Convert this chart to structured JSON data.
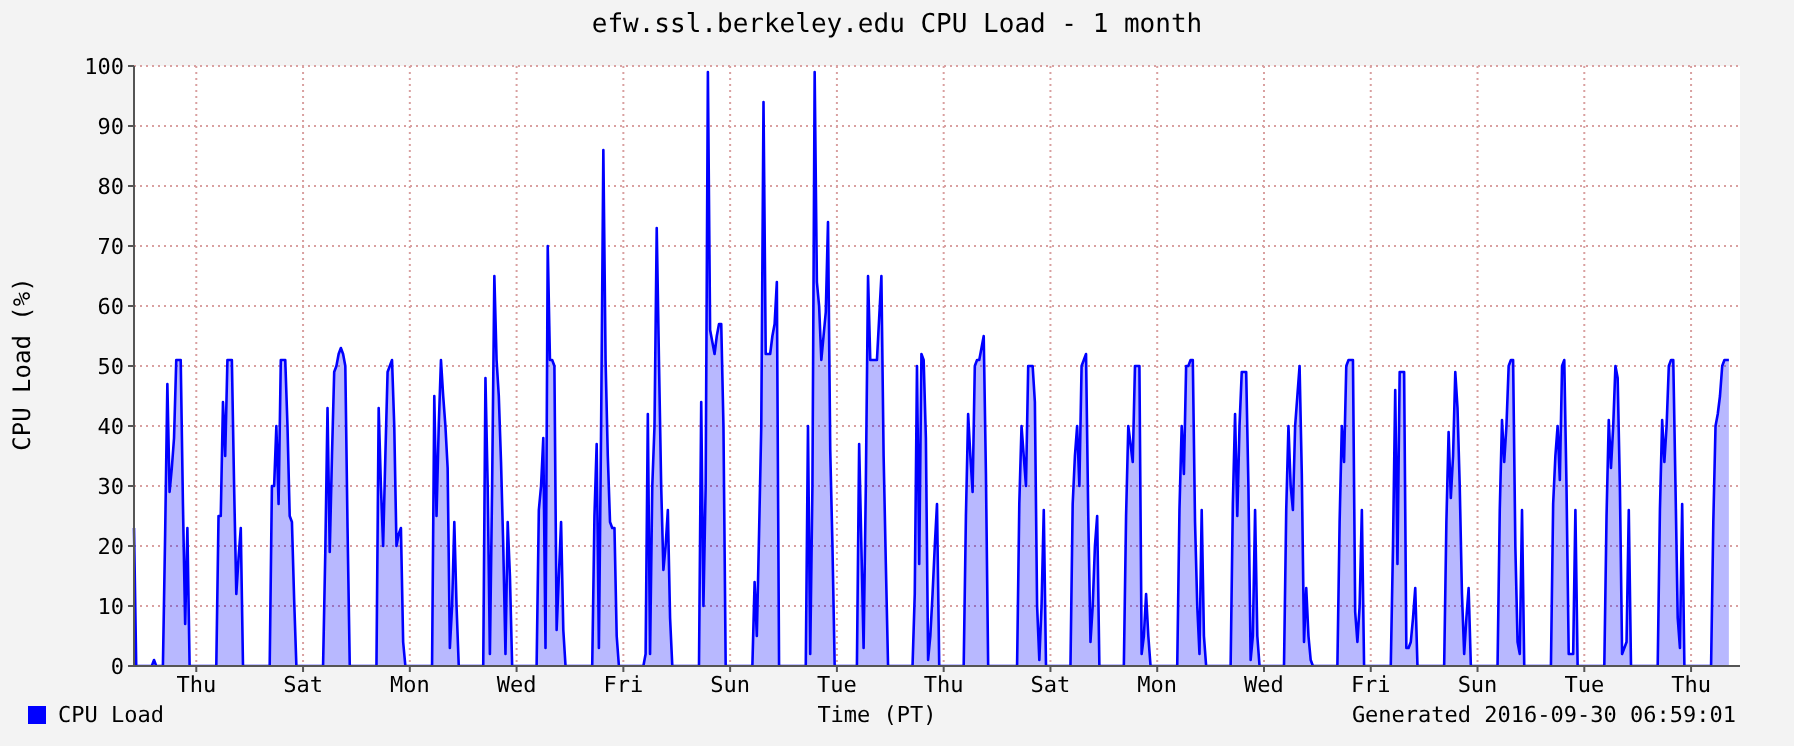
{
  "chart_data": {
    "type": "area",
    "title": "efw.ssl.berkeley.edu CPU Load - 1 month",
    "xlabel": "Time (PT)",
    "ylabel": "CPU Load (%)",
    "annotations": [
      "Generated 2016-09-30 06:59:01"
    ],
    "legend": "bottom left",
    "grid": true,
    "categories": [
      null,
      null,
      null,
      null,
      null,
      null,
      null,
      null,
      null,
      null,
      null,
      null,
      null,
      null,
      null,
      null,
      null,
      null,
      null,
      null,
      null,
      null,
      null,
      null,
      null,
      null,
      null,
      null,
      "Thu",
      null,
      null,
      null,
      null,
      null,
      null,
      null,
      null,
      null,
      null,
      null,
      null,
      null,
      null,
      null,
      null,
      null,
      null,
      null,
      null,
      null,
      null,
      null,
      null,
      null,
      null,
      null,
      null,
      null,
      null,
      null,
      null,
      null,
      null,
      null,
      null,
      null,
      null,
      null,
      null,
      null,
      null,
      null,
      null,
      null,
      null,
      null,
      "Sat",
      null,
      null,
      null,
      null,
      null,
      null,
      null,
      null,
      null,
      null,
      null,
      null,
      null,
      null,
      null,
      null,
      null,
      null,
      null,
      null,
      null,
      null,
      null,
      null,
      null,
      null,
      null,
      null,
      null,
      null,
      null,
      null,
      null,
      null,
      null,
      null,
      null,
      null,
      null,
      null,
      null,
      null,
      null,
      null,
      null,
      null,
      null,
      "Mon",
      null,
      null,
      null,
      null,
      null,
      null,
      null,
      null,
      null,
      null,
      null,
      null,
      null,
      null,
      null,
      null,
      null,
      null,
      null,
      null,
      null,
      null,
      null,
      null,
      null,
      null,
      null,
      null,
      null,
      null,
      null,
      null,
      null,
      null,
      null,
      null,
      null,
      null,
      null,
      null,
      null,
      null,
      null,
      null,
      null,
      null,
      null,
      "Wed",
      null,
      null,
      null,
      null,
      null,
      null,
      null,
      null,
      null,
      null,
      null,
      null,
      null,
      null,
      null,
      null,
      null,
      null,
      null,
      null,
      null,
      null,
      null,
      null,
      null,
      null,
      null,
      null,
      null,
      null,
      null,
      null,
      null,
      null,
      null,
      null,
      null,
      null,
      null,
      null,
      null,
      null,
      null,
      null,
      null,
      null,
      null,
      "Fri",
      null,
      null,
      null,
      null,
      null,
      null,
      null,
      null,
      null,
      null,
      null,
      null,
      null,
      null,
      null,
      null,
      null,
      null,
      null,
      null,
      null,
      null,
      null,
      null,
      null,
      null,
      null,
      null,
      null,
      null,
      null,
      null,
      null,
      null,
      null,
      null,
      null,
      null,
      null,
      null,
      null,
      null,
      null,
      null,
      null,
      null,
      null,
      "Sun",
      null,
      null,
      null,
      null,
      null,
      null,
      null,
      null,
      null,
      null,
      null,
      null,
      null,
      null,
      null,
      null,
      null,
      null,
      null,
      null,
      null,
      null,
      null,
      null,
      null,
      null,
      null,
      null,
      null,
      null,
      null,
      null,
      null,
      null,
      null,
      null,
      null,
      null,
      null,
      null,
      null,
      null,
      null,
      null,
      null,
      null,
      null,
      "Tue",
      null,
      null,
      null,
      null,
      null,
      null,
      null,
      null,
      null,
      null,
      null,
      null,
      null,
      null,
      null,
      null,
      null,
      null,
      null,
      null,
      null,
      null,
      null,
      null,
      null,
      null,
      null,
      null,
      null,
      null,
      null,
      null,
      null,
      null,
      null,
      null,
      null,
      null,
      null,
      null,
      null,
      null,
      null,
      null,
      null,
      null,
      null,
      "Thu",
      null,
      null,
      null,
      null,
      null,
      null,
      null,
      null,
      null,
      null,
      null,
      null,
      null,
      null,
      null,
      null,
      null,
      null,
      null,
      null,
      null,
      null,
      null,
      null,
      null,
      null,
      null,
      null,
      null,
      null,
      null,
      null,
      null,
      null,
      null,
      null,
      null,
      null,
      null,
      null,
      null,
      null,
      null,
      null,
      null,
      null,
      null,
      "Sat",
      null,
      null,
      null,
      null,
      null,
      null,
      null,
      null,
      null,
      null,
      null,
      null,
      null,
      null,
      null,
      null,
      null,
      null,
      null,
      null,
      null,
      null,
      null,
      null,
      null,
      null,
      null,
      null,
      null,
      null,
      null,
      null,
      null,
      null,
      null,
      null,
      null,
      null,
      null,
      null,
      null,
      null,
      null,
      null,
      null,
      null,
      null,
      "Mon",
      null,
      null,
      null,
      null,
      null,
      null,
      null,
      null,
      null,
      null,
      null,
      null,
      null,
      null,
      null,
      null,
      null,
      null,
      null,
      null,
      null,
      null,
      null,
      null,
      null,
      null,
      null,
      null,
      null,
      null,
      null,
      null,
      null,
      null,
      null,
      null,
      null,
      null,
      null,
      null,
      null,
      null,
      null,
      null,
      null,
      null,
      null,
      "Wed",
      null,
      null,
      null,
      null,
      null,
      null,
      null,
      null,
      null,
      null,
      null,
      null,
      null,
      null,
      null,
      null,
      null,
      null,
      null,
      null,
      null,
      null,
      null,
      null,
      null,
      null,
      null,
      null,
      null,
      null,
      null,
      null,
      null,
      null,
      null,
      null,
      null,
      null,
      null,
      null,
      null,
      null,
      null,
      null,
      null,
      null,
      null,
      "Fri",
      null,
      null,
      null,
      null,
      null,
      null,
      null,
      null,
      null,
      null,
      null,
      null,
      null,
      null,
      null,
      null,
      null,
      null,
      null,
      null,
      null,
      null,
      null,
      null,
      null,
      null,
      null,
      null,
      null,
      null,
      null,
      null,
      null,
      null,
      null,
      null,
      null,
      null,
      null,
      null,
      null,
      null,
      null,
      null,
      null,
      null,
      null,
      "Sun",
      null,
      null,
      null,
      null,
      null,
      null,
      null,
      null,
      null,
      null,
      null,
      null,
      null,
      null,
      null,
      null,
      null,
      null,
      null,
      null,
      null,
      null,
      null,
      null,
      null,
      null,
      null,
      null,
      null,
      null,
      null,
      null,
      null,
      null,
      null,
      null,
      null,
      null,
      null,
      null,
      null,
      null,
      null,
      null,
      null,
      null,
      null,
      "Tue",
      null,
      null,
      null,
      null,
      null,
      null,
      null,
      null,
      null,
      null,
      null,
      null,
      null,
      null,
      null,
      null,
      null,
      null,
      null,
      null,
      null,
      null,
      null,
      null,
      null,
      null,
      null,
      null,
      null,
      null,
      null,
      null,
      null,
      null,
      null,
      null,
      null,
      null,
      null,
      null,
      null,
      null,
      null,
      null,
      null,
      null,
      null,
      "Thu",
      null,
      null,
      null,
      null,
      null,
      null,
      null,
      null,
      null,
      null,
      null,
      null,
      null,
      null,
      null,
      null,
      null,
      null,
      null,
      null,
      null,
      null
    ],
    "ylim": [
      0,
      100
    ],
    "yticks": [
      0,
      10,
      20,
      30,
      40,
      50,
      60,
      70,
      80,
      90,
      100
    ],
    "series": [
      {
        "name": "CPU Load",
        "color": "#0000ff",
        "values": [
          23,
          0,
          0,
          0,
          0,
          0,
          0,
          0,
          0,
          1,
          0,
          0,
          0,
          0,
          22,
          47,
          29,
          33,
          38,
          51,
          51,
          51,
          27,
          7,
          23,
          0,
          0,
          0,
          0,
          0,
          0,
          0,
          0,
          0,
          0,
          0,
          0,
          0,
          25,
          25,
          44,
          35,
          51,
          51,
          51,
          30,
          12,
          18,
          23,
          0,
          0,
          0,
          0,
          0,
          0,
          0,
          0,
          0,
          0,
          0,
          0,
          0,
          30,
          30,
          40,
          27,
          51,
          51,
          51,
          40,
          25,
          24,
          11,
          0,
          0,
          0,
          0,
          0,
          0,
          0,
          0,
          0,
          0,
          0,
          0,
          0,
          19,
          43,
          19,
          35,
          49,
          50,
          52,
          53,
          52,
          50,
          23,
          0,
          0,
          0,
          0,
          0,
          0,
          0,
          0,
          0,
          0,
          0,
          0,
          0,
          43,
          30,
          20,
          35,
          49,
          50,
          51,
          40,
          20,
          22,
          23,
          4,
          0,
          0,
          0,
          0,
          0,
          0,
          0,
          0,
          0,
          0,
          0,
          0,
          0,
          45,
          25,
          40,
          51,
          45,
          40,
          33,
          3,
          10,
          24,
          10,
          0,
          0,
          0,
          0,
          0,
          0,
          0,
          0,
          0,
          0,
          0,
          0,
          48,
          30,
          2,
          30,
          65,
          51,
          45,
          34,
          20,
          2,
          24,
          15,
          0,
          0,
          0,
          0,
          0,
          0,
          0,
          0,
          0,
          0,
          0,
          0,
          26,
          30,
          38,
          3,
          70,
          51,
          51,
          50,
          6,
          15,
          24,
          6,
          0,
          0,
          0,
          0,
          0,
          0,
          0,
          0,
          0,
          0,
          0,
          0,
          0,
          25,
          37,
          3,
          40,
          86,
          51,
          35,
          24,
          23,
          23,
          5,
          0,
          0,
          0,
          0,
          0,
          0,
          0,
          0,
          0,
          0,
          0,
          0,
          2,
          42,
          2,
          30,
          40,
          73,
          51,
          30,
          16,
          20,
          26,
          8,
          0,
          0,
          0,
          0,
          0,
          0,
          0,
          0,
          0,
          0,
          0,
          0,
          0,
          44,
          10,
          30,
          99,
          56,
          54,
          52,
          55,
          57,
          57,
          40,
          0,
          0,
          0,
          0,
          0,
          0,
          0,
          0,
          0,
          0,
          0,
          0,
          0,
          14,
          5,
          22,
          40,
          94,
          52,
          52,
          52,
          55,
          57,
          64,
          0,
          0,
          0,
          0,
          0,
          0,
          0,
          0,
          0,
          0,
          0,
          0,
          0,
          40,
          2,
          30,
          99,
          64,
          60,
          51,
          55,
          59,
          74,
          36,
          20,
          0,
          0,
          0,
          0,
          0,
          0,
          0,
          0,
          0,
          0,
          0,
          37,
          20,
          3,
          30,
          65,
          51,
          51,
          51,
          51,
          58,
          65,
          35,
          17,
          0,
          0,
          0,
          0,
          0,
          0,
          0,
          0,
          0,
          0,
          0,
          0,
          12,
          50,
          17,
          52,
          51,
          38,
          1,
          5,
          12,
          20,
          27,
          0,
          0,
          0,
          0,
          0,
          0,
          0,
          0,
          0,
          0,
          0,
          0,
          25,
          42,
          35,
          29,
          50,
          51,
          51,
          53,
          55,
          32,
          0,
          0,
          0,
          0,
          0,
          0,
          0,
          0,
          0,
          0,
          0,
          0,
          0,
          0,
          27,
          40,
          35,
          30,
          50,
          50,
          50,
          44,
          10,
          1,
          10,
          26,
          0,
          0,
          0,
          0,
          0,
          0,
          0,
          0,
          0,
          0,
          0,
          0,
          27,
          35,
          40,
          30,
          50,
          51,
          52,
          25,
          4,
          10,
          20,
          25,
          0,
          0,
          0,
          0,
          0,
          0,
          0,
          0,
          0,
          0,
          0,
          0,
          25,
          40,
          37,
          34,
          50,
          50,
          50,
          2,
          5,
          12,
          5,
          0,
          0,
          0,
          0,
          0,
          0,
          0,
          0,
          0,
          0,
          0,
          0,
          0,
          26,
          40,
          32,
          50,
          50,
          51,
          51,
          24,
          10,
          2,
          26,
          5,
          0,
          0,
          0,
          0,
          0,
          0,
          0,
          0,
          0,
          0,
          0,
          0,
          27,
          42,
          25,
          40,
          49,
          49,
          49,
          30,
          1,
          5,
          26,
          5,
          0,
          0,
          0,
          0,
          0,
          0,
          0,
          0,
          0,
          0,
          0,
          0,
          26,
          40,
          30,
          26,
          40,
          45,
          50,
          32,
          4,
          13,
          5,
          1,
          0,
          0,
          0,
          0,
          0,
          0,
          0,
          0,
          0,
          0,
          0,
          0,
          24,
          40,
          34,
          50,
          51,
          51,
          51,
          9,
          4,
          10,
          26,
          0,
          0,
          0,
          0,
          0,
          0,
          0,
          0,
          0,
          0,
          0,
          0,
          0,
          20,
          46,
          17,
          49,
          49,
          49,
          3,
          3,
          4,
          8,
          13,
          0,
          0,
          0,
          0,
          0,
          0,
          0,
          0,
          0,
          0,
          0,
          0,
          0,
          24,
          39,
          28,
          35,
          49,
          43,
          30,
          12,
          2,
          8,
          13,
          0,
          0,
          0,
          0,
          0,
          0,
          0,
          0,
          0,
          0,
          0,
          0,
          0,
          26,
          41,
          34,
          40,
          50,
          51,
          51,
          20,
          4,
          2,
          26,
          0,
          0,
          0,
          0,
          0,
          0,
          0,
          0,
          0,
          0,
          0,
          0,
          0,
          27,
          35,
          40,
          31,
          50,
          51,
          30,
          2,
          2,
          2,
          26,
          0,
          0,
          0,
          0,
          0,
          0,
          0,
          0,
          0,
          0,
          0,
          0,
          0,
          25,
          41,
          33,
          40,
          50,
          48,
          30,
          2,
          3,
          4,
          26,
          0,
          0,
          0,
          0,
          0,
          0,
          0,
          0,
          0,
          0,
          0,
          0,
          0,
          26,
          41,
          34,
          40,
          50,
          51,
          51,
          30,
          8,
          3,
          27,
          0,
          0,
          0,
          0,
          0,
          0,
          0,
          0,
          0,
          0,
          0,
          0,
          0,
          24,
          40,
          42,
          45,
          50,
          51,
          51,
          51,
          null,
          null,
          null,
          null,
          null
        ]
      }
    ]
  }
}
